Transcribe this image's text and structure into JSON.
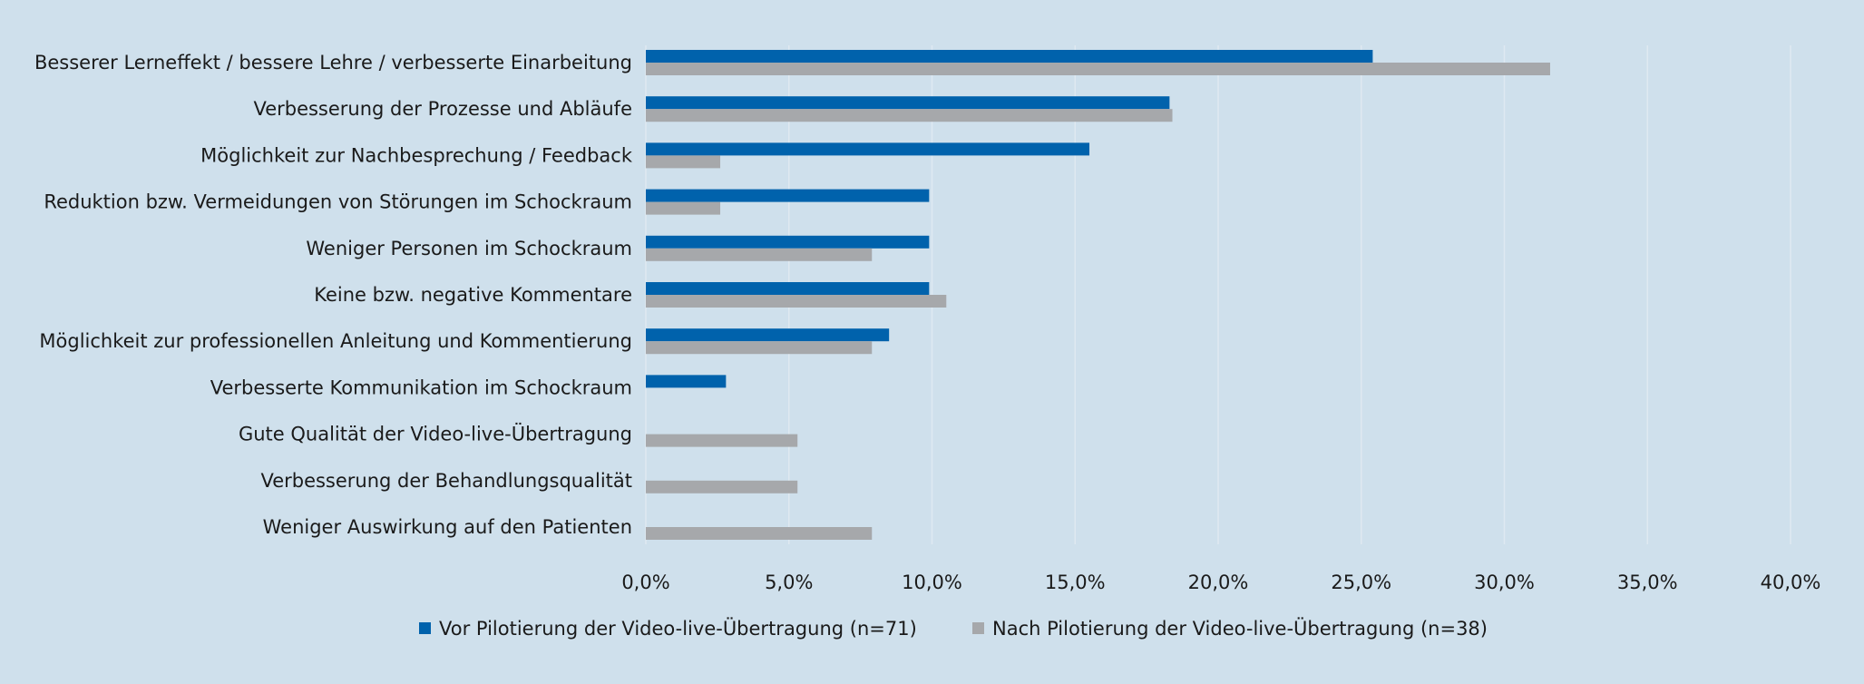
{
  "chart_data": {
    "type": "bar",
    "orientation": "horizontal",
    "categories": [
      "Besserer Lerneffekt / bessere Lehre / verbesserte Einarbeitung",
      "Verbesserung der Prozesse und Abläufe",
      "Möglichkeit zur Nachbesprechung / Feedback",
      "Reduktion bzw. Vermeidungen von Störungen im Schockraum",
      "Weniger Personen im Schockraum",
      "Keine bzw. negative Kommentare",
      "Möglichkeit zur professionellen Anleitung und Kommentierung",
      "Verbesserte Kommunikation im Schockraum",
      "Gute Qualität der Video-live-Übertragung",
      "Verbesserung der Behandlungsqualität",
      "Weniger Auswirkung auf den Patienten"
    ],
    "series": [
      {
        "name": "Vor Pilotierung der Video-live-Übertragung (n=71)",
        "color": "#0062ac",
        "values": [
          25.4,
          18.3,
          15.5,
          9.9,
          9.9,
          9.9,
          8.5,
          2.8,
          0,
          0,
          0
        ]
      },
      {
        "name": "Nach Pilotierung der Video-live-Übertragung (n=38)",
        "color": "#a6a8ab",
        "values": [
          31.6,
          18.4,
          2.6,
          2.6,
          7.9,
          10.5,
          7.9,
          0,
          5.3,
          5.3,
          7.9
        ]
      }
    ],
    "xlim": [
      0,
      40
    ],
    "xticks": [
      "0,0%",
      "5,0%",
      "10,0%",
      "15,0%",
      "20,0%",
      "25,0%",
      "30,0%",
      "35,0%",
      "40,0%"
    ],
    "grid": true,
    "legend_position": "bottom",
    "title": "",
    "xlabel": "",
    "ylabel": ""
  }
}
